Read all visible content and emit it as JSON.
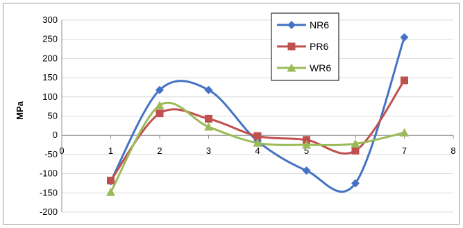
{
  "chart_data": {
    "type": "line",
    "title": "",
    "xlabel": "",
    "ylabel": "MPa",
    "xlim": [
      0,
      8
    ],
    "ylim": [
      -200,
      300
    ],
    "x_ticks": [
      0,
      1,
      2,
      3,
      4,
      5,
      6,
      7,
      8
    ],
    "y_ticks": [
      300,
      250,
      200,
      150,
      100,
      50,
      0,
      -50,
      -100,
      -150,
      -200
    ],
    "grid": true,
    "legend_position": "top-right",
    "smooth": true,
    "series": [
      {
        "name": "NR6",
        "color": "#4472c4",
        "marker": "diamond",
        "x": [
          1,
          2,
          3,
          4,
          5,
          6,
          7
        ],
        "y": [
          -120,
          118,
          118,
          -15,
          -92,
          -125,
          255
        ]
      },
      {
        "name": "PR6",
        "color": "#c0504d",
        "marker": "square",
        "x": [
          1,
          2,
          3,
          4,
          5,
          6,
          7
        ],
        "y": [
          -118,
          57,
          43,
          -2,
          -12,
          -40,
          143
        ]
      },
      {
        "name": "WR6",
        "color": "#9bbb59",
        "marker": "triangle",
        "x": [
          1,
          2,
          3,
          4,
          5,
          6,
          7
        ],
        "y": [
          -148,
          78,
          22,
          -20,
          -25,
          -22,
          7
        ]
      }
    ]
  }
}
